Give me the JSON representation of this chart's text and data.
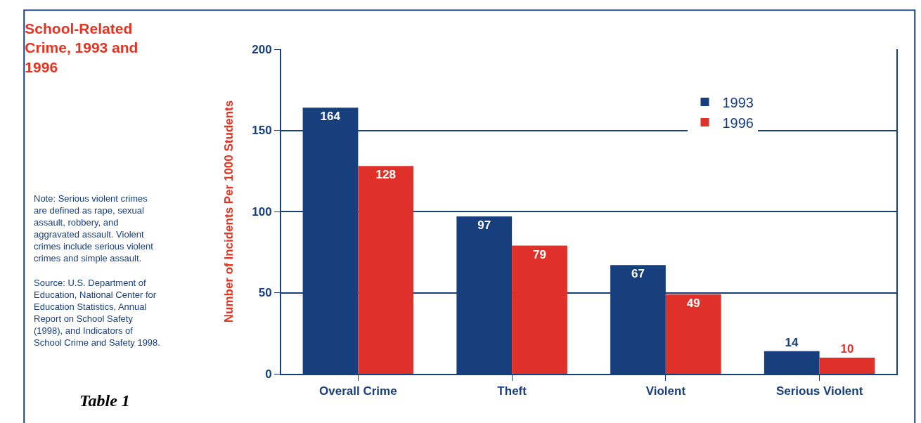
{
  "chart_data": {
    "type": "bar",
    "title": "School-Related Crime, 1993 and 1996",
    "ylabel": "Number of Incidents Per 1000 Students",
    "categories": [
      "Overall Crime",
      "Theft",
      "Violent",
      "Serious Violent"
    ],
    "series": [
      {
        "name": "1993",
        "color": "#173f7e",
        "values": [
          164,
          97,
          67,
          14
        ]
      },
      {
        "name": "1996",
        "color": "#e0302a",
        "values": [
          128,
          79,
          49,
          10
        ]
      }
    ],
    "ylim": [
      0,
      200
    ],
    "yticks": [
      0,
      50,
      100,
      150,
      200
    ],
    "grid": "y",
    "legend": "top right",
    "data_labels": true,
    "annotations": [
      "Note: Serious violent crimes are defined as rape, sexual assault, robbery, and aggravated assault. Violent crimes include serious violent crimes and simple assault.",
      "Source: U.S. Department of Education, National Center for Education Statistics, Annual Report on School Safety (1998), and Indicators of School Crime and Safety 1998.",
      "Table 1"
    ]
  }
}
